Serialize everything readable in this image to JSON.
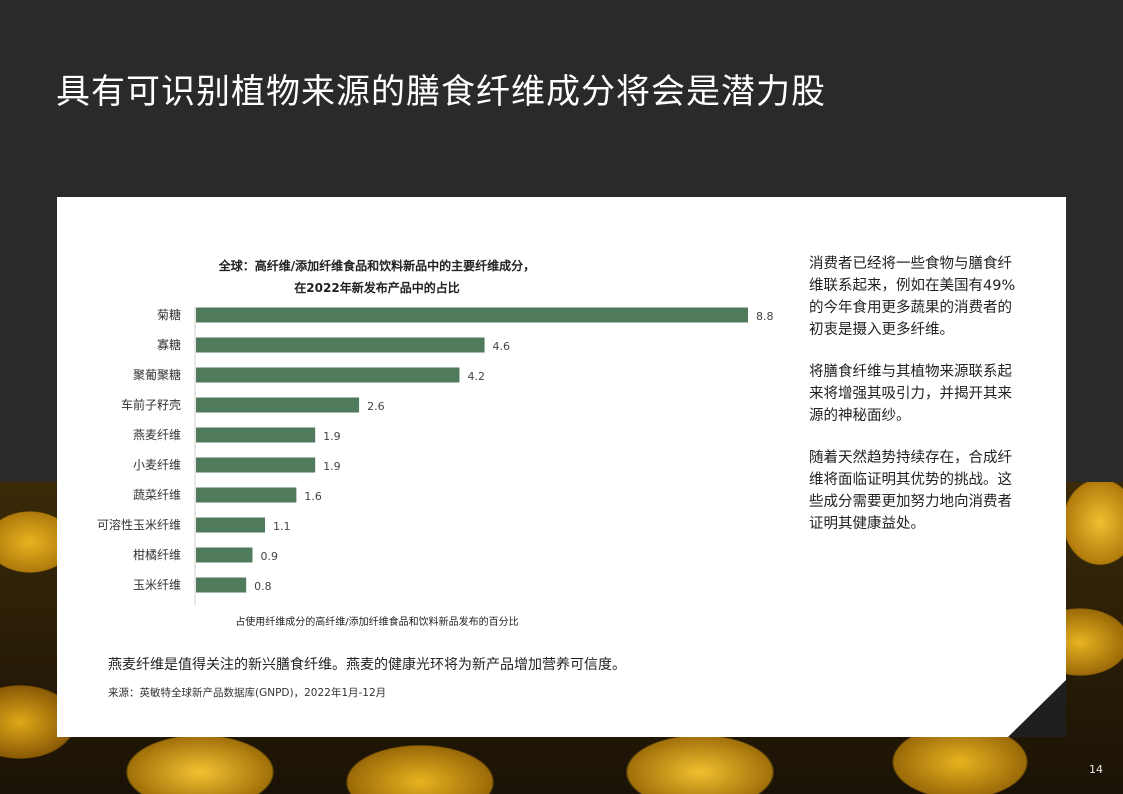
{
  "page": {
    "title": "具有可识别植物来源的膳食纤维成分将会是潜力股",
    "page_number": "14"
  },
  "side_text": {
    "p1": "消费者已经将一些食物与膳食纤维联系起来，例如在美国有49%的今年食用更多蔬果的消费者的初衷是摄入更多纤维。",
    "p2": "将膳食纤维与其植物来源联系起来将增强其吸引力，并揭开其来源的神秘面纱。",
    "p3": "随着天然趋势持续存在，合成纤维将面临证明其优势的挑战。这些成分需要更加努力地向消费者证明其健康益处。"
  },
  "caption": "燕麦纤维是值得关注的新兴膳食纤维。燕麦的健康光环将为新产品增加营养可信度。",
  "source": "来源：英敏特全球新产品数据库(GNPD)，2022年1月-12月",
  "chart_data": {
    "type": "bar",
    "orientation": "horizontal",
    "title_line1": "全球：高纤维/添加纤维食品和饮料新品中的主要纤维成分，",
    "title_line2": "在2022年新发布产品中的占比",
    "xlabel": "占使用纤维成分的高纤维/添加纤维食品和饮料新品发布的百分比",
    "categories": [
      "菊糖",
      "寡糖",
      "聚葡聚糖",
      "车前子籽壳",
      "燕麦纤维",
      "小麦纤维",
      "蔬菜纤维",
      "可溶性玉米纤维",
      "柑橘纤维",
      "玉米纤维"
    ],
    "values": [
      8.8,
      4.6,
      4.2,
      2.6,
      1.9,
      1.9,
      1.6,
      1.1,
      0.9,
      0.8
    ],
    "value_labels": [
      "8.8",
      "4.6",
      "4.2",
      "2.6",
      "1.9",
      "1.9",
      "1.6",
      "1.1",
      "0.9",
      "0.8"
    ],
    "xlim": [
      0,
      8.8
    ],
    "bar_color": "#4f7a5c",
    "grid": false,
    "legend": "none"
  }
}
